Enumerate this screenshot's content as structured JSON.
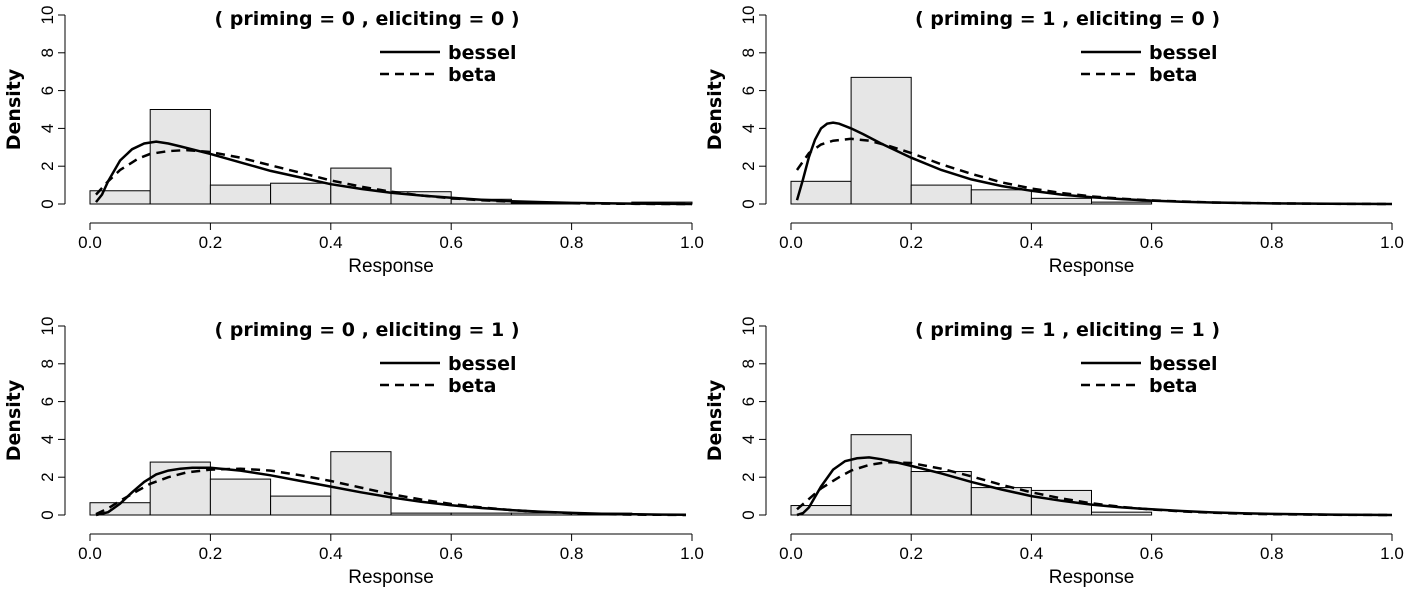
{
  "chart_data": [
    {
      "type": "histogram",
      "title": "( priming = 0 , eliciting = 0 )",
      "xlabel": "Response",
      "ylabel": "Density",
      "xlim": [
        0,
        1
      ],
      "ylim": [
        0,
        10
      ],
      "xticks": [
        "0.0",
        "0.2",
        "0.4",
        "0.6",
        "0.8",
        "1.0"
      ],
      "yticks": [
        "0",
        "2",
        "4",
        "6",
        "8",
        "10"
      ],
      "bins": [
        0,
        0.1,
        0.2,
        0.3,
        0.4,
        0.5,
        0.6,
        0.7,
        0.8,
        0.9,
        1.0
      ],
      "densities": [
        0.7,
        5.0,
        1.0,
        1.1,
        1.9,
        0.65,
        0.25,
        0.05,
        0.0,
        0.1
      ],
      "series": [
        {
          "name": "bessel",
          "style": "solid",
          "x": [
            0.01,
            0.02,
            0.03,
            0.05,
            0.07,
            0.09,
            0.11,
            0.13,
            0.15,
            0.2,
            0.25,
            0.3,
            0.35,
            0.4,
            0.45,
            0.5,
            0.55,
            0.6,
            0.65,
            0.7,
            0.75,
            0.8,
            0.85,
            0.9,
            0.95,
            1.0
          ],
          "y": [
            0.1,
            0.5,
            1.2,
            2.3,
            2.9,
            3.2,
            3.3,
            3.2,
            3.05,
            2.65,
            2.2,
            1.75,
            1.4,
            1.05,
            0.8,
            0.6,
            0.45,
            0.33,
            0.23,
            0.15,
            0.1,
            0.06,
            0.04,
            0.02,
            0.01,
            0.0
          ]
        },
        {
          "name": "beta",
          "style": "dashed",
          "x": [
            0.01,
            0.03,
            0.05,
            0.08,
            0.1,
            0.13,
            0.16,
            0.2,
            0.25,
            0.3,
            0.35,
            0.4,
            0.45,
            0.5,
            0.55,
            0.6,
            0.65,
            0.7,
            0.75,
            0.8,
            0.85,
            0.9,
            0.95,
            1.0
          ],
          "y": [
            0.5,
            1.2,
            1.8,
            2.4,
            2.65,
            2.8,
            2.85,
            2.75,
            2.45,
            2.05,
            1.65,
            1.25,
            0.92,
            0.65,
            0.45,
            0.3,
            0.2,
            0.12,
            0.07,
            0.04,
            0.02,
            0.01,
            0.0,
            0.0
          ]
        }
      ]
    },
    {
      "type": "histogram",
      "title": "( priming = 1 , eliciting = 0 )",
      "xlabel": "Response",
      "ylabel": "Density",
      "xlim": [
        0,
        1
      ],
      "ylim": [
        0,
        10
      ],
      "xticks": [
        "0.0",
        "0.2",
        "0.4",
        "0.6",
        "0.8",
        "1.0"
      ],
      "yticks": [
        "0",
        "2",
        "4",
        "6",
        "8",
        "10"
      ],
      "bins": [
        0,
        0.1,
        0.2,
        0.3,
        0.4,
        0.5,
        0.6,
        0.7,
        0.8,
        0.9,
        1.0
      ],
      "densities": [
        1.2,
        6.7,
        1.0,
        0.75,
        0.3,
        0.1,
        0.0,
        0.0,
        0.0,
        0.0
      ],
      "series": [
        {
          "name": "bessel",
          "style": "solid",
          "x": [
            0.01,
            0.02,
            0.03,
            0.04,
            0.05,
            0.06,
            0.07,
            0.08,
            0.1,
            0.12,
            0.15,
            0.2,
            0.25,
            0.3,
            0.35,
            0.4,
            0.45,
            0.5,
            0.55,
            0.6,
            0.65,
            0.7,
            0.8,
            0.9,
            1.0
          ],
          "y": [
            0.2,
            1.3,
            2.5,
            3.4,
            4.0,
            4.25,
            4.3,
            4.25,
            4.0,
            3.7,
            3.2,
            2.45,
            1.8,
            1.3,
            0.95,
            0.7,
            0.5,
            0.36,
            0.26,
            0.18,
            0.12,
            0.08,
            0.03,
            0.01,
            0.0
          ]
        },
        {
          "name": "beta",
          "style": "dashed",
          "x": [
            0.01,
            0.03,
            0.05,
            0.07,
            0.1,
            0.13,
            0.16,
            0.2,
            0.25,
            0.3,
            0.35,
            0.4,
            0.45,
            0.5,
            0.55,
            0.6,
            0.65,
            0.7,
            0.8,
            0.9,
            1.0
          ],
          "y": [
            1.8,
            2.7,
            3.15,
            3.35,
            3.45,
            3.35,
            3.1,
            2.7,
            2.1,
            1.6,
            1.15,
            0.82,
            0.58,
            0.4,
            0.28,
            0.19,
            0.13,
            0.08,
            0.03,
            0.01,
            0.0
          ]
        }
      ]
    },
    {
      "type": "histogram",
      "title": "( priming = 0 , eliciting = 1 )",
      "xlabel": "Response",
      "ylabel": "Density",
      "xlim": [
        0,
        1
      ],
      "ylim": [
        0,
        10
      ],
      "xticks": [
        "0.0",
        "0.2",
        "0.4",
        "0.6",
        "0.8",
        "1.0"
      ],
      "yticks": [
        "0",
        "2",
        "4",
        "6",
        "8",
        "10"
      ],
      "bins": [
        0,
        0.1,
        0.2,
        0.3,
        0.4,
        0.5,
        0.6,
        0.7,
        0.8,
        0.9,
        1.0
      ],
      "densities": [
        0.65,
        2.8,
        1.9,
        1.0,
        3.35,
        0.1,
        0.1,
        0.1,
        0.1,
        0.0
      ],
      "series": [
        {
          "name": "bessel",
          "style": "solid",
          "x": [
            0.01,
            0.03,
            0.05,
            0.07,
            0.09,
            0.11,
            0.13,
            0.15,
            0.17,
            0.2,
            0.25,
            0.3,
            0.35,
            0.4,
            0.45,
            0.5,
            0.55,
            0.6,
            0.65,
            0.7,
            0.75,
            0.8,
            0.85,
            0.9,
            0.95,
            0.99
          ],
          "y": [
            0.0,
            0.15,
            0.6,
            1.2,
            1.75,
            2.15,
            2.35,
            2.45,
            2.5,
            2.5,
            2.35,
            2.1,
            1.8,
            1.5,
            1.2,
            0.93,
            0.7,
            0.52,
            0.37,
            0.26,
            0.17,
            0.11,
            0.07,
            0.04,
            0.02,
            0.01
          ]
        },
        {
          "name": "beta",
          "style": "dashed",
          "x": [
            0.01,
            0.03,
            0.05,
            0.08,
            0.1,
            0.13,
            0.16,
            0.2,
            0.25,
            0.3,
            0.35,
            0.4,
            0.45,
            0.5,
            0.55,
            0.6,
            0.65,
            0.7,
            0.75,
            0.8,
            0.85,
            0.9,
            0.95,
            0.99
          ],
          "y": [
            0.05,
            0.35,
            0.75,
            1.3,
            1.65,
            2.0,
            2.25,
            2.4,
            2.45,
            2.35,
            2.1,
            1.8,
            1.45,
            1.1,
            0.82,
            0.58,
            0.4,
            0.26,
            0.16,
            0.1,
            0.05,
            0.02,
            0.01,
            0.0
          ]
        }
      ]
    },
    {
      "type": "histogram",
      "title": "( priming = 1 , eliciting = 1 )",
      "xlabel": "Response",
      "ylabel": "Density",
      "xlim": [
        0,
        1
      ],
      "ylim": [
        0,
        10
      ],
      "xticks": [
        "0.0",
        "0.2",
        "0.4",
        "0.6",
        "0.8",
        "1.0"
      ],
      "yticks": [
        "0",
        "2",
        "4",
        "6",
        "8",
        "10"
      ],
      "bins": [
        0,
        0.1,
        0.2,
        0.3,
        0.4,
        0.5,
        0.6,
        0.7,
        0.8,
        0.9,
        1.0
      ],
      "densities": [
        0.5,
        4.25,
        2.3,
        1.45,
        1.3,
        0.15,
        0.0,
        0.0,
        0.0,
        0.0
      ],
      "series": [
        {
          "name": "bessel",
          "style": "solid",
          "x": [
            0.01,
            0.02,
            0.03,
            0.05,
            0.07,
            0.09,
            0.11,
            0.13,
            0.15,
            0.18,
            0.2,
            0.25,
            0.3,
            0.35,
            0.4,
            0.45,
            0.5,
            0.55,
            0.6,
            0.65,
            0.7,
            0.75,
            0.8,
            0.9,
            1.0
          ],
          "y": [
            0.0,
            0.1,
            0.4,
            1.5,
            2.4,
            2.85,
            3.0,
            3.05,
            2.95,
            2.75,
            2.6,
            2.2,
            1.75,
            1.35,
            1.0,
            0.75,
            0.55,
            0.4,
            0.3,
            0.21,
            0.14,
            0.09,
            0.06,
            0.02,
            0.0
          ]
        },
        {
          "name": "beta",
          "style": "dashed",
          "x": [
            0.01,
            0.03,
            0.05,
            0.08,
            0.1,
            0.13,
            0.16,
            0.2,
            0.25,
            0.3,
            0.35,
            0.4,
            0.45,
            0.5,
            0.55,
            0.6,
            0.65,
            0.7,
            0.75,
            0.8,
            0.9,
            1.0
          ],
          "y": [
            0.3,
            0.85,
            1.4,
            2.0,
            2.35,
            2.65,
            2.8,
            2.75,
            2.45,
            2.05,
            1.6,
            1.2,
            0.88,
            0.62,
            0.43,
            0.29,
            0.19,
            0.12,
            0.07,
            0.04,
            0.01,
            0.0
          ]
        }
      ]
    }
  ]
}
